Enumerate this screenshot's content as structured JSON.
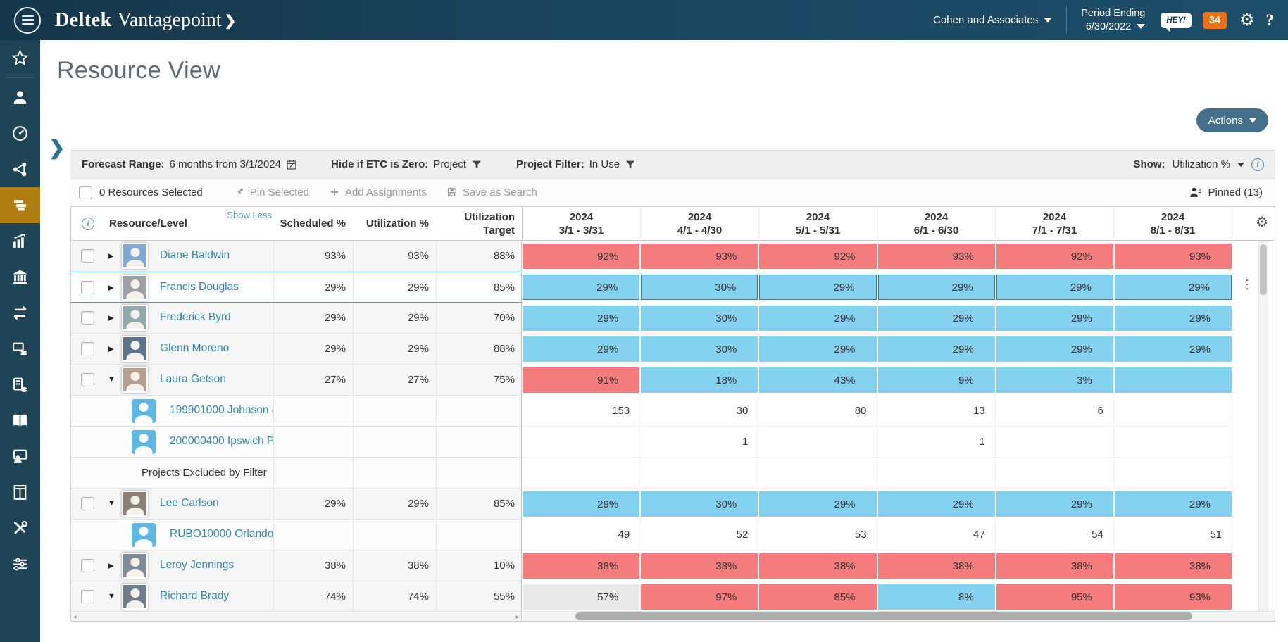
{
  "header": {
    "brand_bold": "Deltek",
    "brand_light": "Vantagepoint",
    "brand_chevron": "❯",
    "company": "Cohen and Associates",
    "period_label": "Period Ending",
    "period_value": "6/30/2022",
    "hey_badge": "HEY!",
    "notification_count": "34",
    "help_label": "?"
  },
  "sidebar": {
    "items": [
      "favorites",
      "employees",
      "dashboard",
      "share",
      "resource-planning",
      "reports",
      "firm",
      "transfers",
      "billing",
      "accounting",
      "ledger",
      "human-resources",
      "cabinets",
      "utilities",
      "settings"
    ],
    "active_item": "resource-planning",
    "active_color": "#AF7D12"
  },
  "page": {
    "title": "Resource View",
    "actions_label": "Actions"
  },
  "filters": {
    "forecast_label": "Forecast Range:",
    "forecast_value": "6 months from 3/1/2024",
    "etc_label": "Hide if ETC is Zero:",
    "etc_value": "Project",
    "project_filter_label": "Project Filter:",
    "project_filter_value": "In Use",
    "show_label": "Show:",
    "show_value": "Utilization %"
  },
  "toolbar": {
    "selected_text": "0 Resources Selected",
    "pin_selected": "Pin Selected",
    "add_assignments": "Add Assignments",
    "save_as_search": "Save as Search",
    "pinned": "Pinned (13)"
  },
  "table": {
    "show_less": "Show Less",
    "info_icon": "i",
    "col_resource": "Resource/Level",
    "col_scheduled": "Scheduled %",
    "col_utilization": "Utilization %",
    "col_target_line1": "Utilization",
    "col_target_line2": "Target",
    "months": [
      {
        "year": "2024",
        "range": "3/1 - 3/31"
      },
      {
        "year": "2024",
        "range": "4/1 - 4/30"
      },
      {
        "year": "2024",
        "range": "5/1 - 5/31"
      },
      {
        "year": "2024",
        "range": "6/1 - 6/30"
      },
      {
        "year": "2024",
        "range": "7/1 - 7/31"
      },
      {
        "year": "2024",
        "range": "8/1 - 8/31"
      }
    ],
    "rows": [
      {
        "type": "resource",
        "name": "Diane Baldwin",
        "expanded": false,
        "selected": false,
        "avatar_color": "#7FA7D6",
        "scheduled": "93%",
        "utilization": "93%",
        "target": "88%",
        "cells": [
          {
            "text": "92%",
            "color": "red"
          },
          {
            "text": "93%",
            "color": "red"
          },
          {
            "text": "92%",
            "color": "red"
          },
          {
            "text": "93%",
            "color": "red"
          },
          {
            "text": "92%",
            "color": "red"
          },
          {
            "text": "93%",
            "color": "red"
          }
        ]
      },
      {
        "type": "resource",
        "name": "Francis Douglas",
        "expanded": false,
        "selected": true,
        "menu": true,
        "avatar_color": "#9AA0A6",
        "scheduled": "29%",
        "utilization": "29%",
        "target": "85%",
        "cells": [
          {
            "text": "29%",
            "color": "blue"
          },
          {
            "text": "30%",
            "color": "blue"
          },
          {
            "text": "29%",
            "color": "blue"
          },
          {
            "text": "29%",
            "color": "blue"
          },
          {
            "text": "29%",
            "color": "blue"
          },
          {
            "text": "29%",
            "color": "blue"
          }
        ]
      },
      {
        "type": "resource",
        "name": "Frederick Byrd",
        "expanded": false,
        "selected": false,
        "avatar_color": "#8FA8A8",
        "scheduled": "29%",
        "utilization": "29%",
        "target": "70%",
        "cells": [
          {
            "text": "29%",
            "color": "blue"
          },
          {
            "text": "30%",
            "color": "blue"
          },
          {
            "text": "29%",
            "color": "blue"
          },
          {
            "text": "29%",
            "color": "blue"
          },
          {
            "text": "29%",
            "color": "blue"
          },
          {
            "text": "29%",
            "color": "blue"
          }
        ]
      },
      {
        "type": "resource",
        "name": "Glenn Moreno",
        "expanded": false,
        "selected": false,
        "avatar_color": "#5E7390",
        "scheduled": "29%",
        "utilization": "29%",
        "target": "88%",
        "cells": [
          {
            "text": "29%",
            "color": "blue"
          },
          {
            "text": "30%",
            "color": "blue"
          },
          {
            "text": "29%",
            "color": "blue"
          },
          {
            "text": "29%",
            "color": "blue"
          },
          {
            "text": "29%",
            "color": "blue"
          },
          {
            "text": "29%",
            "color": "blue"
          }
        ]
      },
      {
        "type": "resource",
        "name": "Laura Getson",
        "expanded": true,
        "selected": false,
        "avatar_color": "#B49E8E",
        "scheduled": "27%",
        "utilization": "27%",
        "target": "75%",
        "cells": [
          {
            "text": "91%",
            "color": "red"
          },
          {
            "text": "18%",
            "color": "blue"
          },
          {
            "text": "43%",
            "color": "blue"
          },
          {
            "text": "9%",
            "color": "blue"
          },
          {
            "text": "3%",
            "color": "blue"
          },
          {
            "text": "",
            "color": "blue"
          }
        ]
      },
      {
        "type": "project",
        "name": "199901000 Johnson &",
        "cells": [
          {
            "text": "153",
            "color": "none"
          },
          {
            "text": "30",
            "color": "none"
          },
          {
            "text": "80",
            "color": "none"
          },
          {
            "text": "13",
            "color": "none"
          },
          {
            "text": "6",
            "color": "none"
          },
          {
            "text": "",
            "color": "none"
          }
        ]
      },
      {
        "type": "project",
        "name": "200000400 Ipswich P",
        "cells": [
          {
            "text": "",
            "color": "none"
          },
          {
            "text": "1",
            "color": "none"
          },
          {
            "text": "",
            "color": "none"
          },
          {
            "text": "1",
            "color": "none"
          },
          {
            "text": "",
            "color": "none"
          },
          {
            "text": "",
            "color": "none"
          }
        ]
      },
      {
        "type": "note",
        "name": "Projects Excluded by Filter",
        "cells": [
          {
            "text": "",
            "color": "none"
          },
          {
            "text": "",
            "color": "none"
          },
          {
            "text": "",
            "color": "none"
          },
          {
            "text": "",
            "color": "none"
          },
          {
            "text": "",
            "color": "none"
          },
          {
            "text": "",
            "color": "none"
          }
        ]
      },
      {
        "type": "resource",
        "name": "Lee Carlson",
        "expanded": true,
        "selected": false,
        "avatar_color": "#8C7E74",
        "scheduled": "29%",
        "utilization": "29%",
        "target": "85%",
        "cells": [
          {
            "text": "29%",
            "color": "blue"
          },
          {
            "text": "30%",
            "color": "blue"
          },
          {
            "text": "29%",
            "color": "blue"
          },
          {
            "text": "29%",
            "color": "blue"
          },
          {
            "text": "29%",
            "color": "blue"
          },
          {
            "text": "29%",
            "color": "blue"
          }
        ]
      },
      {
        "type": "project",
        "name": "RUBO10000 Orlando",
        "cells": [
          {
            "text": "49",
            "color": "none"
          },
          {
            "text": "52",
            "color": "none"
          },
          {
            "text": "53",
            "color": "none"
          },
          {
            "text": "47",
            "color": "none"
          },
          {
            "text": "54",
            "color": "none"
          },
          {
            "text": "51",
            "color": "none"
          }
        ]
      },
      {
        "type": "resource",
        "name": "Leroy Jennings",
        "expanded": false,
        "selected": false,
        "avatar_color": "#7E8C99",
        "scheduled": "38%",
        "utilization": "38%",
        "target": "10%",
        "cells": [
          {
            "text": "38%",
            "color": "red"
          },
          {
            "text": "38%",
            "color": "red"
          },
          {
            "text": "38%",
            "color": "red"
          },
          {
            "text": "38%",
            "color": "red"
          },
          {
            "text": "38%",
            "color": "red"
          },
          {
            "text": "38%",
            "color": "red"
          }
        ]
      },
      {
        "type": "resource",
        "name": "Richard Brady",
        "expanded": true,
        "selected": false,
        "avatar_color": "#6E7E8A",
        "scheduled": "74%",
        "utilization": "74%",
        "target": "55%",
        "cells": [
          {
            "text": "57%",
            "color": "gray"
          },
          {
            "text": "97%",
            "color": "red"
          },
          {
            "text": "85%",
            "color": "red"
          },
          {
            "text": "8%",
            "color": "blue"
          },
          {
            "text": "95%",
            "color": "red"
          },
          {
            "text": "93%",
            "color": "red"
          }
        ]
      }
    ]
  },
  "colors": {
    "overbooked_red": "#F47C7C",
    "available_blue": "#85D1F0",
    "past_gray": "#E9E9E9",
    "active_nav": "#AF7D12",
    "badge_orange": "#EC7117",
    "link_blue": "#3186B0",
    "topbar_teal": "#1B4660",
    "sidebar_navy": "#1F4456",
    "actions_button": "#45708C"
  }
}
